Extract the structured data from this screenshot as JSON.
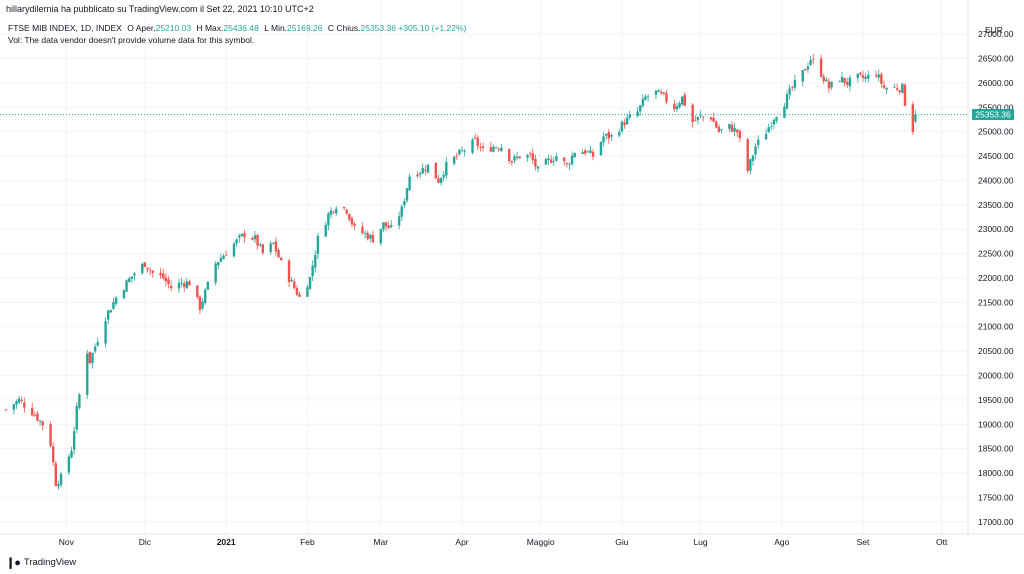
{
  "header": {
    "published_by": "hillarydilernia ha pubblicato su TradingView.com il Set 22, 2021 10:10 UTC+2"
  },
  "legend": {
    "symbol": "FTSE MIB INDEX, 1D, INDEX",
    "open_label": "O",
    "open_text": "Aper.",
    "open_value": "25210.03",
    "high_label": "H",
    "high_text": "Max.",
    "high_value": "25436.48",
    "low_label": "L",
    "low_text": "Min.",
    "low_value": "25169.26",
    "close_label": "C",
    "close_text": "Chius.",
    "close_value": "25353.36",
    "change": "+305.10 (+1.22%)",
    "volume_note": "Vol: The data vendor doesn't provide volume data for this symbol."
  },
  "footer": {
    "brand": "TradingView"
  },
  "colors": {
    "up": "#26a69a",
    "down": "#ef5350",
    "grid": "#f0f3fa",
    "axis_text": "#131722"
  },
  "chart_data": {
    "type": "candlestick",
    "currency": "EUR",
    "ylim": [
      16750,
      27700
    ],
    "y_ticks": [
      17000,
      17500,
      18000,
      18500,
      19000,
      19500,
      20000,
      20500,
      21000,
      21500,
      22000,
      22500,
      23000,
      23500,
      24000,
      24500,
      25000,
      25500,
      26000,
      26500,
      27000
    ],
    "y_tick_labels": [
      "17000.00",
      "17500.00",
      "18000.00",
      "18500.00",
      "19000.00",
      "19500.00",
      "20000.00",
      "20500.00",
      "21000.00",
      "21500.00",
      "22000.00",
      "22500.00",
      "23000.00",
      "23500.00",
      "24000.00",
      "24500.00",
      "25000.00",
      "25500.00",
      "26000.00",
      "26500.00",
      "27000.00"
    ],
    "x_labels": [
      {
        "label": "Nov",
        "date": "2020-11-01"
      },
      {
        "label": "Dic",
        "date": "2020-12-01"
      },
      {
        "label": "2021",
        "date": "2021-01-01",
        "bold": true
      },
      {
        "label": "Feb",
        "date": "2021-02-01"
      },
      {
        "label": "Mar",
        "date": "2021-03-01"
      },
      {
        "label": "Apr",
        "date": "2021-04-01"
      },
      {
        "label": "Maggio",
        "date": "2021-05-01"
      },
      {
        "label": "Giu",
        "date": "2021-06-01"
      },
      {
        "label": "Lug",
        "date": "2021-07-01"
      },
      {
        "label": "Ago",
        "date": "2021-08-01"
      },
      {
        "label": "Set",
        "date": "2021-09-01"
      },
      {
        "label": "Ott",
        "date": "2021-10-01"
      }
    ],
    "last_price": 25353.36,
    "last_price_label": "25353.36",
    "grid": true,
    "close_path": [
      [
        "2020-10-09",
        19300
      ],
      [
        "2020-10-14",
        19500
      ],
      [
        "2020-10-20",
        19200
      ],
      [
        "2020-10-23",
        19000
      ],
      [
        "2020-10-26",
        18600
      ],
      [
        "2020-10-28",
        17800
      ],
      [
        "2020-10-30",
        17900
      ],
      [
        "2020-11-03",
        18500
      ],
      [
        "2020-11-05",
        19300
      ],
      [
        "2020-11-09",
        20500
      ],
      [
        "2020-11-10",
        20300
      ],
      [
        "2020-11-12",
        20600
      ],
      [
        "2020-11-16",
        21200
      ],
      [
        "2020-11-20",
        21600
      ],
      [
        "2020-11-24",
        21900
      ],
      [
        "2020-11-27",
        22100
      ],
      [
        "2020-12-01",
        22300
      ],
      [
        "2020-12-04",
        22100
      ],
      [
        "2020-12-08",
        22000
      ],
      [
        "2020-12-11",
        21800
      ],
      [
        "2020-12-15",
        21900
      ],
      [
        "2020-12-18",
        21900
      ],
      [
        "2020-12-22",
        21400
      ],
      [
        "2020-12-28",
        22300
      ],
      [
        "2021-01-04",
        22700
      ],
      [
        "2021-01-08",
        22900
      ],
      [
        "2021-01-12",
        22800
      ],
      [
        "2021-01-15",
        22500
      ],
      [
        "2021-01-19",
        22700
      ],
      [
        "2021-01-22",
        22300
      ],
      [
        "2021-01-26",
        21900
      ],
      [
        "2021-01-29",
        21600
      ],
      [
        "2021-02-02",
        22000
      ],
      [
        "2021-02-05",
        22800
      ],
      [
        "2021-02-09",
        23300
      ],
      [
        "2021-02-12",
        23500
      ],
      [
        "2021-02-16",
        23400
      ],
      [
        "2021-02-19",
        23000
      ],
      [
        "2021-02-23",
        22900
      ],
      [
        "2021-02-26",
        22800
      ],
      [
        "2021-03-02",
        23100
      ],
      [
        "2021-03-05",
        23000
      ],
      [
        "2021-03-09",
        23400
      ],
      [
        "2021-03-12",
        24100
      ],
      [
        "2021-03-16",
        24200
      ],
      [
        "2021-03-19",
        24300
      ],
      [
        "2021-03-23",
        24000
      ],
      [
        "2021-03-26",
        24300
      ],
      [
        "2021-03-30",
        24500
      ],
      [
        "2021-04-06",
        24800
      ],
      [
        "2021-04-09",
        24600
      ],
      [
        "2021-04-13",
        24700
      ],
      [
        "2021-04-16",
        24700
      ],
      [
        "2021-04-20",
        24400
      ],
      [
        "2021-04-23",
        24500
      ],
      [
        "2021-04-27",
        24500
      ],
      [
        "2021-04-30",
        24200
      ],
      [
        "2021-05-04",
        24400
      ],
      [
        "2021-05-07",
        24500
      ],
      [
        "2021-05-11",
        24300
      ],
      [
        "2021-05-14",
        24600
      ],
      [
        "2021-05-18",
        24600
      ],
      [
        "2021-05-21",
        24500
      ],
      [
        "2021-05-25",
        24900
      ],
      [
        "2021-05-28",
        24900
      ],
      [
        "2021-06-02",
        25200
      ],
      [
        "2021-06-07",
        25400
      ],
      [
        "2021-06-10",
        25700
      ],
      [
        "2021-06-14",
        25800
      ],
      [
        "2021-06-17",
        25700
      ],
      [
        "2021-06-21",
        25500
      ],
      [
        "2021-06-24",
        25700
      ],
      [
        "2021-06-28",
        25200
      ],
      [
        "2021-07-01",
        25300
      ],
      [
        "2021-07-05",
        25300
      ],
      [
        "2021-07-08",
        25000
      ],
      [
        "2021-07-12",
        25100
      ],
      [
        "2021-07-15",
        25000
      ],
      [
        "2021-07-19",
        24200
      ],
      [
        "2021-07-22",
        24700
      ],
      [
        "2021-07-26",
        25000
      ],
      [
        "2021-07-29",
        25300
      ],
      [
        "2021-08-02",
        25600
      ],
      [
        "2021-08-05",
        25900
      ],
      [
        "2021-08-09",
        26200
      ],
      [
        "2021-08-12",
        26500
      ],
      [
        "2021-08-16",
        26200
      ],
      [
        "2021-08-19",
        25900
      ],
      [
        "2021-08-23",
        26100
      ],
      [
        "2021-08-26",
        26000
      ],
      [
        "2021-08-30",
        26100
      ],
      [
        "2021-09-02",
        26100
      ],
      [
        "2021-09-06",
        26200
      ],
      [
        "2021-09-09",
        25900
      ],
      [
        "2021-09-13",
        25900
      ],
      [
        "2021-09-16",
        25900
      ],
      [
        "2021-09-17",
        25600
      ],
      [
        "2021-09-20",
        25050
      ],
      [
        "2021-09-21",
        25353
      ]
    ]
  }
}
